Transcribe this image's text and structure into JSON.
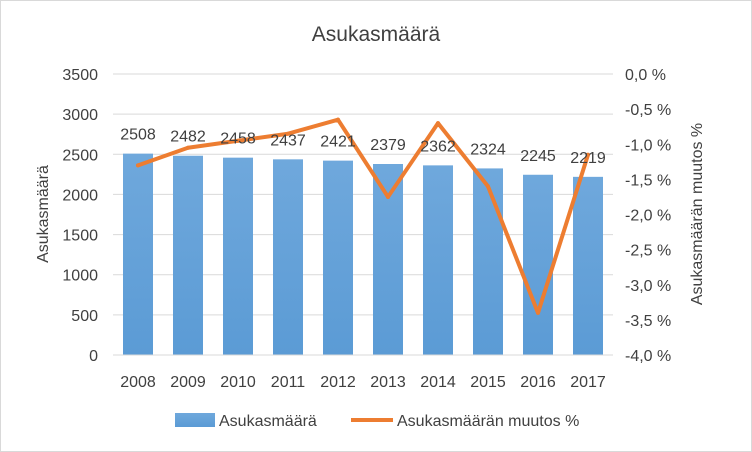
{
  "chart_data": {
    "type": "bar",
    "title": "Asukasmäärä",
    "xlabel": "",
    "ylabel": "Asukasmäärä",
    "y2label": "Asukasmäärän muutos %",
    "categories": [
      "2008",
      "2009",
      "2010",
      "2011",
      "2012",
      "2013",
      "2014",
      "2015",
      "2016",
      "2017"
    ],
    "series": [
      {
        "name": "Asukasmäärä",
        "type": "bar",
        "axis": "left",
        "color": "#5b9bd5",
        "values": [
          2508,
          2482,
          2458,
          2437,
          2421,
          2379,
          2362,
          2324,
          2245,
          2219
        ],
        "data_labels": [
          "2508",
          "2482",
          "2458",
          "2437",
          "2421",
          "2379",
          "2362",
          "2324",
          "2245",
          "2219"
        ]
      },
      {
        "name": "Asukasmäärän muutos %",
        "type": "line",
        "axis": "right",
        "color": "#ed7d31",
        "values": [
          -1.3,
          -1.05,
          -0.95,
          -0.85,
          -0.65,
          -1.75,
          -0.7,
          -1.6,
          -3.4,
          -1.15
        ]
      }
    ],
    "ylim": [
      0,
      3500
    ],
    "y_ticks": [
      0,
      500,
      1000,
      1500,
      2000,
      2500,
      3000,
      3500
    ],
    "y_tick_labels": [
      "0",
      "500",
      "1000",
      "1500",
      "2000",
      "2500",
      "3000",
      "3500"
    ],
    "y2lim": [
      -4.0,
      0.0
    ],
    "y2_ticks": [
      0.0,
      -0.5,
      -1.0,
      -1.5,
      -2.0,
      -2.5,
      -3.0,
      -3.5,
      -4.0
    ],
    "y2_tick_labels": [
      "0,0 %",
      "-0,5 %",
      "-1,0 %",
      "-1,5 %",
      "-2,0 %",
      "-2,5 %",
      "-3,0 %",
      "-3,5 %",
      "-4,0 %"
    ],
    "grid": true,
    "grid_color": "#d9d9d9",
    "legend_position": "bottom"
  }
}
